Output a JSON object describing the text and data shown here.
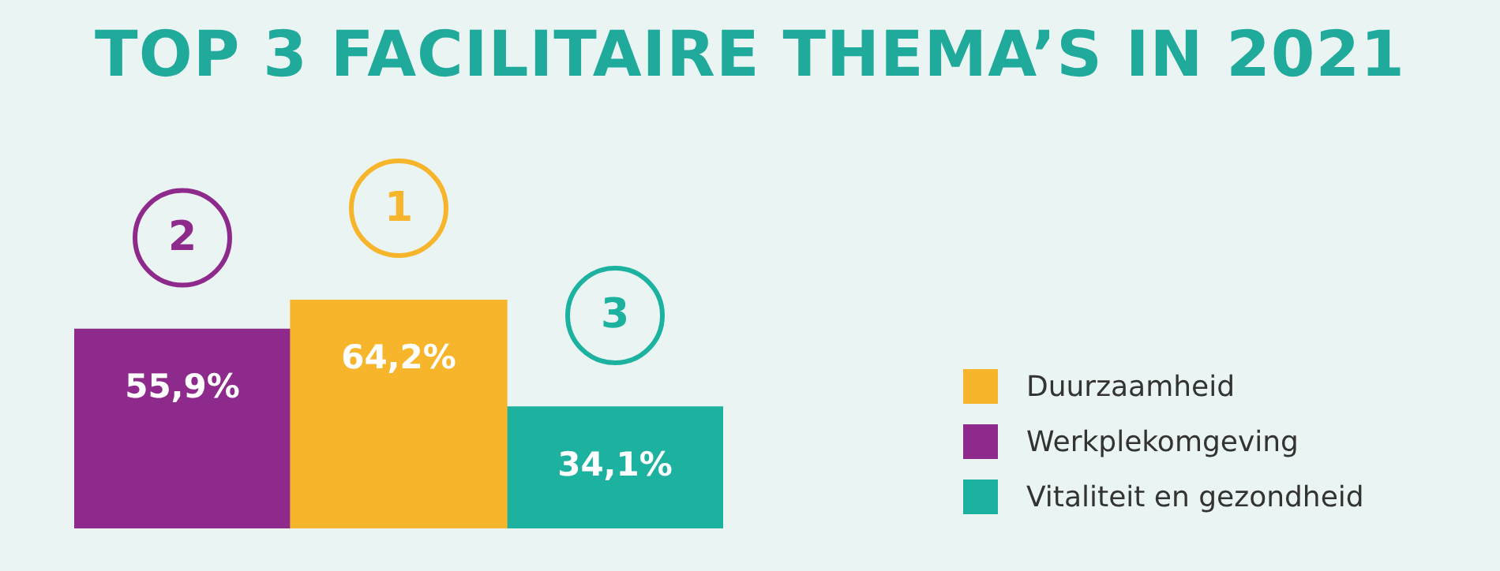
{
  "chart_data": {
    "type": "bar",
    "title": "TOP 3 FACILITAIRE THEMA’S IN 2021",
    "categories": [
      null,
      null,
      null
    ],
    "series": [
      {
        "name": "Duurzaamheid",
        "color": "#f7b52c",
        "values": [
          null,
          64.2,
          null
        ],
        "value_labels": [
          null,
          "64,2%",
          null
        ]
      },
      {
        "name": "Werkplekomgeving",
        "color": "#8e2a8b",
        "values": [
          55.9,
          null,
          null
        ],
        "value_labels": [
          "55,9%",
          null,
          null
        ]
      },
      {
        "name": "Vitaliteit en gezondheid",
        "color": "#1db2a0",
        "values": [
          null,
          null,
          34.1
        ],
        "value_labels": [
          null,
          null,
          "34,1%"
        ]
      }
    ],
    "annotations": [
      "2",
      "1",
      "3"
    ],
    "data_labels": true,
    "legend": "right",
    "stacked": true
  }
}
